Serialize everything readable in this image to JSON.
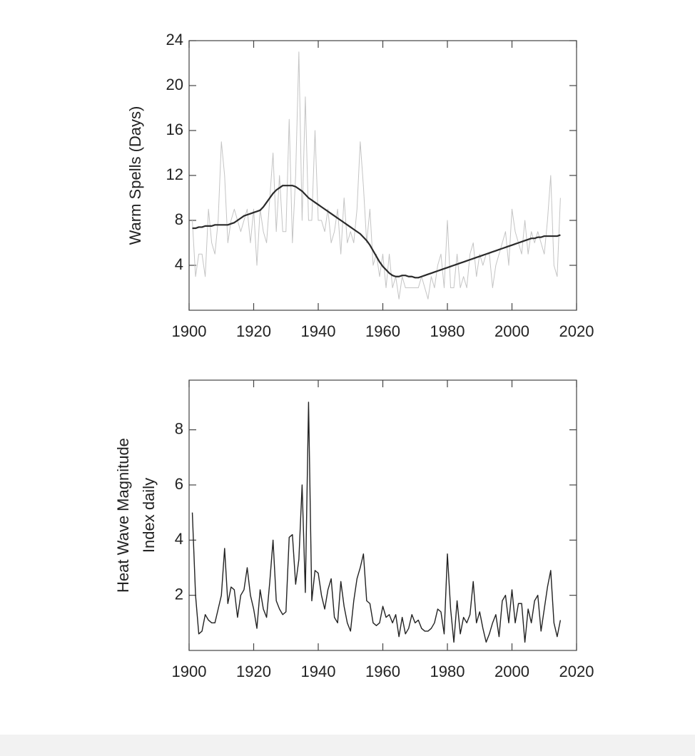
{
  "chart_data": [
    {
      "type": "line",
      "ylabel": "Warm Spells (Days)",
      "x": [
        1901,
        1902,
        1903,
        1904,
        1905,
        1906,
        1907,
        1908,
        1909,
        1910,
        1911,
        1912,
        1913,
        1914,
        1915,
        1916,
        1917,
        1918,
        1919,
        1920,
        1921,
        1922,
        1923,
        1924,
        1925,
        1926,
        1927,
        1928,
        1929,
        1930,
        1931,
        1932,
        1933,
        1934,
        1935,
        1936,
        1937,
        1938,
        1939,
        1940,
        1941,
        1942,
        1943,
        1944,
        1945,
        1946,
        1947,
        1948,
        1949,
        1950,
        1951,
        1952,
        1953,
        1954,
        1955,
        1956,
        1957,
        1958,
        1959,
        1960,
        1961,
        1962,
        1963,
        1964,
        1965,
        1966,
        1967,
        1968,
        1969,
        1970,
        1971,
        1972,
        1973,
        1974,
        1975,
        1976,
        1977,
        1978,
        1979,
        1980,
        1981,
        1982,
        1983,
        1984,
        1985,
        1986,
        1987,
        1988,
        1989,
        1990,
        1991,
        1992,
        1993,
        1994,
        1995,
        1996,
        1997,
        1998,
        1999,
        2000,
        2001,
        2002,
        2003,
        2004,
        2005,
        2006,
        2007,
        2008,
        2009,
        2010,
        2011,
        2012,
        2013,
        2014,
        2015
      ],
      "series": [
        {
          "color": "#c4c4c4",
          "values": [
            8,
            3,
            5,
            5,
            3,
            9,
            6,
            5,
            8,
            15,
            12,
            6,
            8,
            9,
            8,
            7,
            8,
            9,
            6,
            9,
            4,
            9,
            7,
            6,
            10,
            14,
            7,
            12,
            7,
            7,
            17,
            6,
            12,
            23,
            8,
            19,
            8,
            8,
            16,
            8,
            8,
            7,
            9,
            6,
            7,
            9,
            5,
            10,
            6,
            7,
            6,
            9,
            15,
            11,
            6,
            9,
            4,
            5,
            3,
            5,
            2,
            5,
            2,
            3,
            1,
            3,
            2,
            2,
            2,
            2,
            2,
            3,
            2,
            1,
            3,
            2,
            4,
            5,
            2,
            8,
            2,
            2,
            5,
            2,
            3,
            2,
            5,
            6,
            3,
            5,
            4,
            5,
            5,
            2,
            4,
            5,
            6,
            7,
            4,
            9,
            7,
            6,
            5,
            8,
            5,
            7,
            6,
            7,
            6,
            5,
            8,
            12,
            4,
            3,
            10
          ]
        },
        {
          "color": "#2a2a2a",
          "values": [
            7.3,
            7.3,
            7.4,
            7.4,
            7.5,
            7.5,
            7.5,
            7.6,
            7.6,
            7.6,
            7.6,
            7.6,
            7.7,
            7.8,
            8.0,
            8.2,
            8.4,
            8.5,
            8.6,
            8.7,
            8.8,
            8.9,
            9.2,
            9.6,
            10.0,
            10.4,
            10.7,
            10.9,
            11.1,
            11.1,
            11.1,
            11.1,
            11.0,
            10.8,
            10.6,
            10.3,
            10.0,
            9.8,
            9.6,
            9.4,
            9.2,
            9.0,
            8.8,
            8.6,
            8.4,
            8.2,
            8.0,
            7.8,
            7.6,
            7.4,
            7.2,
            7.0,
            6.8,
            6.5,
            6.2,
            5.8,
            5.3,
            4.8,
            4.3,
            3.9,
            3.6,
            3.3,
            3.1,
            3.0,
            3.0,
            3.1,
            3.1,
            3.0,
            3.0,
            2.9,
            2.9,
            3.0,
            3.1,
            3.2,
            3.3,
            3.4,
            3.5,
            3.6,
            3.7,
            3.8,
            3.9,
            4.0,
            4.1,
            4.2,
            4.3,
            4.4,
            4.5,
            4.6,
            4.7,
            4.8,
            4.9,
            5.0,
            5.1,
            5.2,
            5.3,
            5.4,
            5.5,
            5.6,
            5.7,
            5.8,
            5.9,
            6.0,
            6.1,
            6.2,
            6.3,
            6.4,
            6.4,
            6.5,
            6.5,
            6.6,
            6.6,
            6.6,
            6.6,
            6.6,
            6.7
          ]
        }
      ],
      "xlim": [
        1900,
        2020
      ],
      "xticks": [
        1900,
        1920,
        1940,
        1960,
        1980,
        2000,
        2020
      ],
      "ylim": [
        0,
        24
      ],
      "yticks": [
        4,
        8,
        12,
        16,
        20,
        24
      ]
    },
    {
      "type": "line",
      "ylabel": [
        "Heat Wave Magnitude",
        "Index daily"
      ],
      "x": [
        1901,
        1902,
        1903,
        1904,
        1905,
        1906,
        1907,
        1908,
        1909,
        1910,
        1911,
        1912,
        1913,
        1914,
        1915,
        1916,
        1917,
        1918,
        1919,
        1920,
        1921,
        1922,
        1923,
        1924,
        1925,
        1926,
        1927,
        1928,
        1929,
        1930,
        1931,
        1932,
        1933,
        1934,
        1935,
        1936,
        1937,
        1938,
        1939,
        1940,
        1941,
        1942,
        1943,
        1944,
        1945,
        1946,
        1947,
        1948,
        1949,
        1950,
        1951,
        1952,
        1953,
        1954,
        1955,
        1956,
        1957,
        1958,
        1959,
        1960,
        1961,
        1962,
        1963,
        1964,
        1965,
        1966,
        1967,
        1968,
        1969,
        1970,
        1971,
        1972,
        1973,
        1974,
        1975,
        1976,
        1977,
        1978,
        1979,
        1980,
        1981,
        1982,
        1983,
        1984,
        1985,
        1986,
        1987,
        1988,
        1989,
        1990,
        1991,
        1992,
        1993,
        1994,
        1995,
        1996,
        1997,
        1998,
        1999,
        2000,
        2001,
        2002,
        2003,
        2004,
        2005,
        2006,
        2007,
        2008,
        2009,
        2010,
        2011,
        2012,
        2013,
        2014,
        2015
      ],
      "series": [
        {
          "color": "#222222",
          "values": [
            5,
            2,
            0.6,
            0.7,
            1.3,
            1.1,
            1.0,
            1.0,
            1.5,
            2.0,
            3.7,
            1.7,
            2.3,
            2.2,
            1.2,
            2.0,
            2.2,
            3.0,
            2.0,
            1.5,
            0.8,
            2.2,
            1.5,
            1.2,
            2.5,
            4.0,
            1.8,
            1.5,
            1.3,
            1.4,
            4.1,
            4.2,
            2.4,
            3.3,
            6.0,
            2.1,
            9.0,
            1.8,
            2.9,
            2.8,
            2.0,
            1.5,
            2.2,
            2.6,
            1.2,
            1.0,
            2.5,
            1.6,
            1.0,
            0.7,
            1.8,
            2.6,
            3.0,
            3.5,
            1.8,
            1.7,
            1.0,
            0.9,
            1.0,
            1.6,
            1.2,
            1.3,
            1.0,
            1.3,
            0.5,
            1.2,
            0.6,
            0.8,
            1.3,
            1.0,
            1.1,
            0.8,
            0.7,
            0.7,
            0.8,
            1.0,
            1.5,
            1.4,
            0.6,
            3.5,
            1.5,
            0.3,
            1.8,
            0.6,
            1.2,
            1.0,
            1.3,
            2.5,
            1.0,
            1.4,
            0.8,
            0.3,
            0.6,
            1.0,
            1.3,
            0.5,
            1.8,
            2.0,
            1.0,
            2.2,
            1.0,
            1.7,
            1.7,
            0.3,
            1.5,
            1.0,
            1.8,
            2.0,
            0.7,
            1.5,
            2.3,
            2.9,
            1.0,
            0.5,
            1.1
          ]
        }
      ],
      "xlim": [
        1900,
        2020
      ],
      "xticks": [
        1900,
        1920,
        1940,
        1960,
        1980,
        2000,
        2020
      ],
      "ylim": [
        0,
        9.8
      ],
      "yticks": [
        2,
        4,
        6,
        8
      ]
    }
  ]
}
